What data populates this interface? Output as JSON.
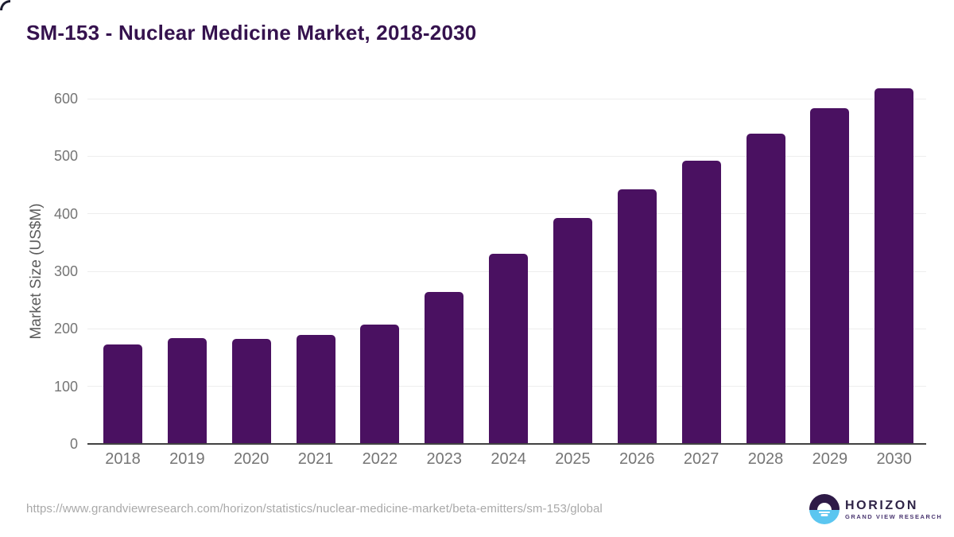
{
  "header": {
    "title": "SM-153 - Nuclear Medicine Market, 2018-2030"
  },
  "chart_data": {
    "type": "bar",
    "title": "SM-153 - Nuclear Medicine Market, 2018-2030",
    "categories": [
      "2018",
      "2019",
      "2020",
      "2021",
      "2022",
      "2023",
      "2024",
      "2025",
      "2026",
      "2027",
      "2028",
      "2029",
      "2030"
    ],
    "values": [
      173,
      184,
      183,
      190,
      208,
      264,
      330,
      392,
      443,
      492,
      539,
      583,
      618
    ],
    "xlabel": "",
    "ylabel": "Market Size (US$M)",
    "ylim": [
      0,
      600
    ],
    "yticks": [
      0,
      100,
      200,
      300,
      400,
      500,
      600
    ],
    "grid": true,
    "legend": "none",
    "bar_color": "#4a1161"
  },
  "footer": {
    "source_url": "https://www.grandviewresearch.com/horizon/statistics/nuclear-medicine-market/beta-emitters/sm-153/global",
    "logo": {
      "brand": "HORIZON",
      "subbrand": "GRAND VIEW RESEARCH",
      "icon": "horizon-sunset-icon"
    }
  },
  "colors": {
    "title": "#35124e",
    "bar": "#4a1161",
    "axis_label": "#757575",
    "axis_title": "#5c5c5c",
    "gridline": "#ededed",
    "baseline": "#424242",
    "url": "#a9a9a9",
    "logo_brand": "#2f2447",
    "logo_subbrand": "#4a3670",
    "logo_icon_top": "#2e1a47",
    "logo_icon_bottom": "#5bc6f0"
  }
}
